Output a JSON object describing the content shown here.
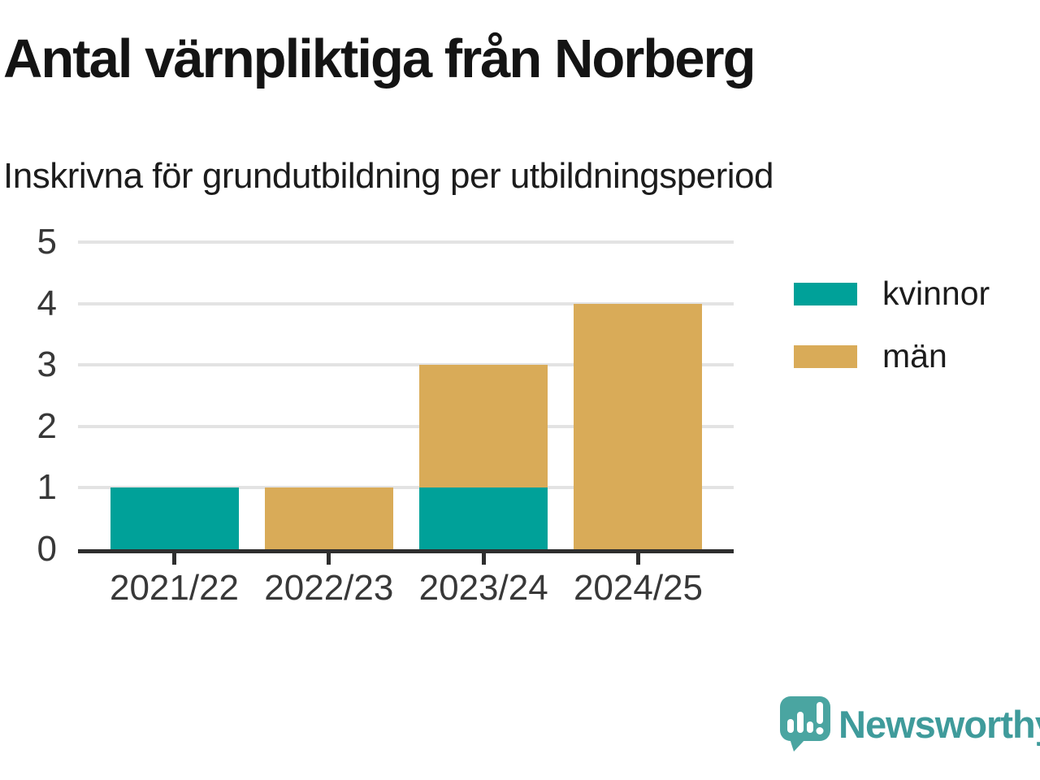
{
  "title": "Antal värnpliktiga från Norberg",
  "subtitle": "Inskrivna för grundutbildning per utbildningsperiod",
  "logo": {
    "text": "Newsworthy",
    "icon": "newsworthy-speech-bubble-bar-chart-icon",
    "color": "#3f9b9b",
    "icon_color": "#4aa5a1"
  },
  "chart_data": {
    "type": "bar",
    "stacked": true,
    "categories": [
      "2021/22",
      "2022/23",
      "2023/24",
      "2024/25"
    ],
    "series": [
      {
        "name": "kvinnor",
        "color": "#00a199",
        "values": [
          1,
          0,
          1,
          0
        ]
      },
      {
        "name": "män",
        "color": "#d9ab58",
        "values": [
          0,
          1,
          2,
          4
        ]
      }
    ],
    "title": "Antal värnpliktiga från Norberg",
    "subtitle": "Inskrivna för grundutbildning per utbildningsperiod",
    "xlabel": "",
    "ylabel": "",
    "ylim": [
      0,
      5
    ],
    "yticks": [
      0,
      1,
      2,
      3,
      4,
      5
    ],
    "grid": true,
    "gridline_color": "#e3e3e3",
    "axis_color": "#2e2e2e",
    "tick_label_color": "#383838",
    "legend_position": "right"
  }
}
